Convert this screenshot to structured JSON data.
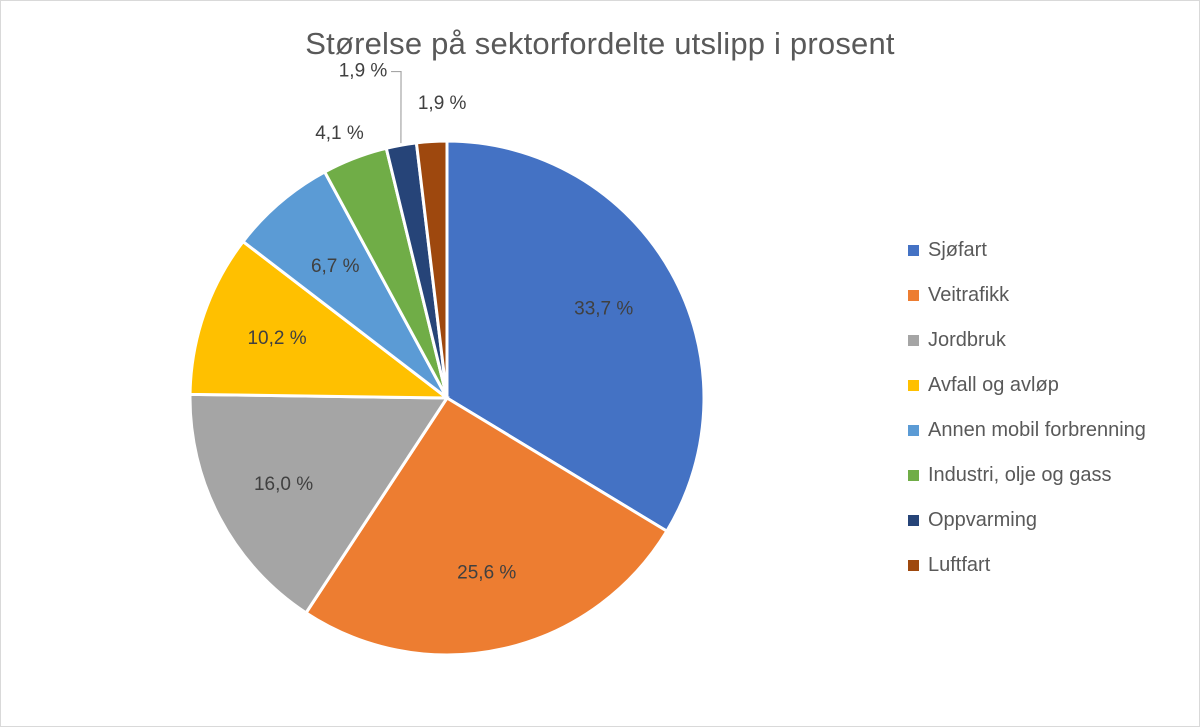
{
  "chart_data": {
    "type": "pie",
    "title": "Størelse på sektorfordelte utslipp i prosent",
    "categories": [
      "Sjøfart",
      "Veitrafikk",
      "Jordbruk",
      "Avfall og avløp",
      "Annen mobil forbrenning",
      "Industri, olje og gass",
      "Oppvarming",
      "Luftfart"
    ],
    "values": [
      33.7,
      25.6,
      16.0,
      10.2,
      6.7,
      4.1,
      1.9,
      1.9
    ],
    "data_labels": [
      "33,7 %",
      "25,6 %",
      "16,0 %",
      "10,2 %",
      "6,7 %",
      "4,1 %",
      "1,9 %",
      "1,9 %"
    ],
    "colors": [
      "#4472C4",
      "#ED7D31",
      "#A5A5A5",
      "#FFC000",
      "#5B9BD5",
      "#70AD47",
      "#264478",
      "#9E480E"
    ],
    "legend_position": "right",
    "start_angle": "12 o'clock, clockwise"
  }
}
